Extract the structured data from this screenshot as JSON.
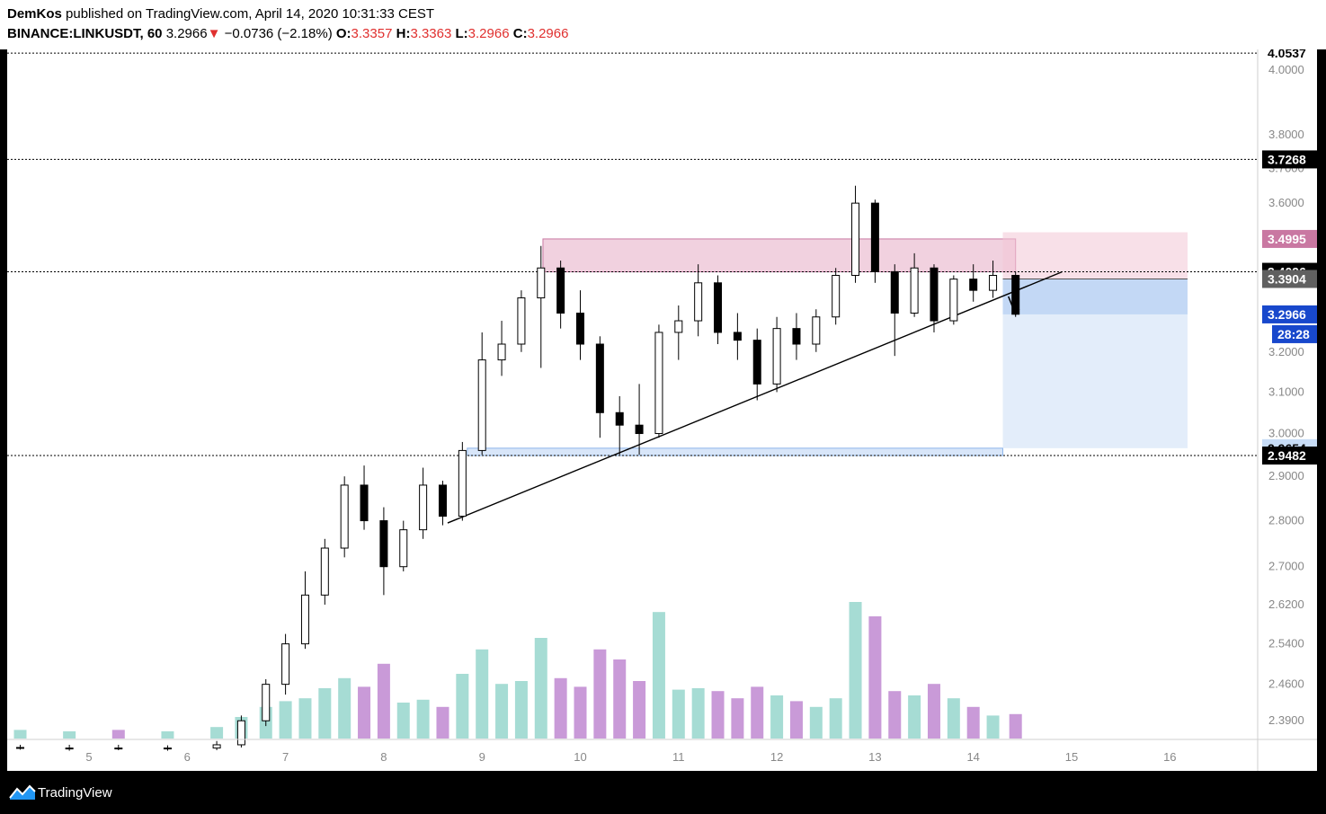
{
  "header": {
    "author": "DemKos",
    "published": " published on TradingView.com, April 14, 2020 10:31:33 CEST",
    "symbol": "BINANCE:LINKUSDT, 60",
    "last": "3.2966",
    "change": "−0.0736 (−2.18%)",
    "open_label": "O:",
    "open": "3.3357",
    "high_label": "H:",
    "high": "3.3363",
    "low_label": "L:",
    "low": "3.2966",
    "close_label": "C:",
    "close": "3.2966",
    "down_arrow": "▼"
  },
  "footer": {
    "brand": "TradingView",
    "logo_icon": "tradingview-logo-icon"
  },
  "colors": {
    "up": "#ffffff",
    "down": "#000000",
    "vol_up": "#a6dcd4",
    "vol_down": "#c99ad8",
    "red_zone": "#e8b3c9",
    "blue_zone": "#c7dcf6",
    "countdown": "#1848cc",
    "current": "#1848cc",
    "gray_tag": "#606060",
    "pink_tag": "#c978a2"
  },
  "chart_data": {
    "type": "candlestick",
    "x_ticks": [
      "5",
      "6",
      "7",
      "8",
      "9",
      "10",
      "11",
      "12",
      "13",
      "14",
      "15",
      "16"
    ],
    "y_ticks": [
      "2.3900",
      "2.4600",
      "2.5400",
      "2.6200",
      "2.7000",
      "2.8000",
      "2.9000",
      "3.0000",
      "3.1000",
      "3.2000",
      "3.3000",
      "3.4000",
      "3.5000",
      "3.6000",
      "3.7000",
      "3.8000",
      "4.0000"
    ],
    "y_range": [
      2.36,
      4.06
    ],
    "scale": "log",
    "axis_tags": [
      {
        "value": "4.0537",
        "style": "line"
      },
      {
        "value": "3.7268",
        "style": "dark"
      },
      {
        "value": "3.4995",
        "style": "pink"
      },
      {
        "value": "3.4096",
        "style": "dark"
      },
      {
        "value": "3.3904",
        "style": "gray"
      },
      {
        "value": "3.2966",
        "style": "blue"
      },
      {
        "value": "28:28",
        "style": "blue"
      },
      {
        "value": "2.9654",
        "style": "light"
      },
      {
        "value": "2.9482",
        "style": "dark"
      }
    ],
    "horizontal_levels": [
      4.0537,
      3.7268,
      3.4096,
      2.9482
    ],
    "resistance_zone": {
      "top": 3.4995,
      "bottom": 3.4096
    },
    "support_zone": {
      "top": 2.9654,
      "bottom": 2.9482
    },
    "trendline": [
      {
        "x": 8.65,
        "y": 2.795
      },
      {
        "x": 14.9,
        "y": 3.409
      }
    ],
    "position": {
      "x_start": 14.3,
      "x_end": 16.18,
      "entry": 3.3904,
      "stop": 3.518,
      "target": 2.9654,
      "current": 3.2966
    },
    "candles_daily_ohlc": [
      {
        "day": 4.3,
        "o": 2.34,
        "h": 2.345,
        "l": 2.336,
        "c": 2.34
      },
      {
        "day": 4.8,
        "o": 2.338,
        "h": 2.345,
        "l": 2.334,
        "c": 2.339
      },
      {
        "day": 5.3,
        "o": 2.339,
        "h": 2.345,
        "l": 2.335,
        "c": 2.338
      },
      {
        "day": 5.8,
        "o": 2.338,
        "h": 2.344,
        "l": 2.334,
        "c": 2.339
      },
      {
        "day": 6.3,
        "o": 2.339,
        "h": 2.352,
        "l": 2.335,
        "c": 2.345
      },
      {
        "day": 6.55,
        "o": 2.345,
        "h": 2.4,
        "l": 2.34,
        "c": 2.39
      },
      {
        "day": 6.8,
        "o": 2.39,
        "h": 2.47,
        "l": 2.38,
        "c": 2.46
      },
      {
        "day": 7.0,
        "o": 2.46,
        "h": 2.56,
        "l": 2.44,
        "c": 2.54
      },
      {
        "day": 7.2,
        "o": 2.54,
        "h": 2.69,
        "l": 2.53,
        "c": 2.64
      },
      {
        "day": 7.4,
        "o": 2.64,
        "h": 2.76,
        "l": 2.62,
        "c": 2.74
      },
      {
        "day": 7.6,
        "o": 2.74,
        "h": 2.9,
        "l": 2.72,
        "c": 2.88
      },
      {
        "day": 7.8,
        "o": 2.88,
        "h": 2.925,
        "l": 2.78,
        "c": 2.8
      },
      {
        "day": 8.0,
        "o": 2.8,
        "h": 2.83,
        "l": 2.64,
        "c": 2.7
      },
      {
        "day": 8.2,
        "o": 2.7,
        "h": 2.8,
        "l": 2.69,
        "c": 2.78
      },
      {
        "day": 8.4,
        "o": 2.78,
        "h": 2.92,
        "l": 2.76,
        "c": 2.88
      },
      {
        "day": 8.6,
        "o": 2.88,
        "h": 2.89,
        "l": 2.79,
        "c": 2.81
      },
      {
        "day": 8.8,
        "o": 2.81,
        "h": 2.98,
        "l": 2.8,
        "c": 2.96
      },
      {
        "day": 9.0,
        "o": 2.96,
        "h": 3.25,
        "l": 2.95,
        "c": 3.18
      },
      {
        "day": 9.2,
        "o": 3.18,
        "h": 3.28,
        "l": 3.14,
        "c": 3.22
      },
      {
        "day": 9.4,
        "o": 3.22,
        "h": 3.36,
        "l": 3.2,
        "c": 3.34
      },
      {
        "day": 9.6,
        "o": 3.34,
        "h": 3.48,
        "l": 3.16,
        "c": 3.42
      },
      {
        "day": 9.8,
        "o": 3.42,
        "h": 3.44,
        "l": 3.26,
        "c": 3.3
      },
      {
        "day": 10.0,
        "o": 3.3,
        "h": 3.36,
        "l": 3.18,
        "c": 3.22
      },
      {
        "day": 10.2,
        "o": 3.22,
        "h": 3.24,
        "l": 2.99,
        "c": 3.05
      },
      {
        "day": 10.4,
        "o": 3.05,
        "h": 3.09,
        "l": 2.95,
        "c": 3.02
      },
      {
        "day": 10.6,
        "o": 3.02,
        "h": 3.12,
        "l": 2.95,
        "c": 3.0
      },
      {
        "day": 10.8,
        "o": 3.0,
        "h": 3.27,
        "l": 2.99,
        "c": 3.25
      },
      {
        "day": 11.0,
        "o": 3.25,
        "h": 3.32,
        "l": 3.18,
        "c": 3.28
      },
      {
        "day": 11.2,
        "o": 3.28,
        "h": 3.43,
        "l": 3.24,
        "c": 3.38
      },
      {
        "day": 11.4,
        "o": 3.38,
        "h": 3.4,
        "l": 3.22,
        "c": 3.25
      },
      {
        "day": 11.6,
        "o": 3.25,
        "h": 3.3,
        "l": 3.18,
        "c": 3.23
      },
      {
        "day": 11.8,
        "o": 3.23,
        "h": 3.26,
        "l": 3.08,
        "c": 3.12
      },
      {
        "day": 12.0,
        "o": 3.12,
        "h": 3.29,
        "l": 3.1,
        "c": 3.26
      },
      {
        "day": 12.2,
        "o": 3.26,
        "h": 3.3,
        "l": 3.18,
        "c": 3.22
      },
      {
        "day": 12.4,
        "o": 3.22,
        "h": 3.31,
        "l": 3.2,
        "c": 3.29
      },
      {
        "day": 12.6,
        "o": 3.29,
        "h": 3.42,
        "l": 3.27,
        "c": 3.4
      },
      {
        "day": 12.8,
        "o": 3.4,
        "h": 3.65,
        "l": 3.38,
        "c": 3.6
      },
      {
        "day": 13.0,
        "o": 3.6,
        "h": 3.61,
        "l": 3.38,
        "c": 3.41
      },
      {
        "day": 13.2,
        "o": 3.41,
        "h": 3.43,
        "l": 3.19,
        "c": 3.3
      },
      {
        "day": 13.4,
        "o": 3.3,
        "h": 3.46,
        "l": 3.29,
        "c": 3.42
      },
      {
        "day": 13.6,
        "o": 3.42,
        "h": 3.43,
        "l": 3.25,
        "c": 3.28
      },
      {
        "day": 13.8,
        "o": 3.28,
        "h": 3.4,
        "l": 3.27,
        "c": 3.39
      },
      {
        "day": 14.0,
        "o": 3.39,
        "h": 3.43,
        "l": 3.33,
        "c": 3.36
      },
      {
        "day": 14.2,
        "o": 3.36,
        "h": 3.44,
        "l": 3.34,
        "c": 3.4
      },
      {
        "day": 14.43,
        "o": 3.4,
        "h": 3.41,
        "l": 3.29,
        "c": 3.297
      }
    ],
    "volume_relative": [
      {
        "day": 4.3,
        "v": 0.06
      },
      {
        "day": 4.8,
        "v": 0.05
      },
      {
        "day": 5.3,
        "v": 0.06
      },
      {
        "day": 5.8,
        "v": 0.05
      },
      {
        "day": 6.3,
        "v": 0.08
      },
      {
        "day": 6.55,
        "v": 0.15
      },
      {
        "day": 6.8,
        "v": 0.22
      },
      {
        "day": 7.0,
        "v": 0.26
      },
      {
        "day": 7.2,
        "v": 0.28
      },
      {
        "day": 7.4,
        "v": 0.35
      },
      {
        "day": 7.6,
        "v": 0.42
      },
      {
        "day": 7.8,
        "v": 0.36
      },
      {
        "day": 8.0,
        "v": 0.52
      },
      {
        "day": 8.2,
        "v": 0.25
      },
      {
        "day": 8.4,
        "v": 0.27
      },
      {
        "day": 8.6,
        "v": 0.22
      },
      {
        "day": 8.8,
        "v": 0.45
      },
      {
        "day": 9.0,
        "v": 0.62
      },
      {
        "day": 9.2,
        "v": 0.38
      },
      {
        "day": 9.4,
        "v": 0.4
      },
      {
        "day": 9.6,
        "v": 0.7
      },
      {
        "day": 9.8,
        "v": 0.42
      },
      {
        "day": 10.0,
        "v": 0.36
      },
      {
        "day": 10.2,
        "v": 0.62
      },
      {
        "day": 10.4,
        "v": 0.55
      },
      {
        "day": 10.6,
        "v": 0.4
      },
      {
        "day": 10.8,
        "v": 0.88
      },
      {
        "day": 11.0,
        "v": 0.34
      },
      {
        "day": 11.2,
        "v": 0.35
      },
      {
        "day": 11.4,
        "v": 0.33
      },
      {
        "day": 11.6,
        "v": 0.28
      },
      {
        "day": 11.8,
        "v": 0.36
      },
      {
        "day": 12.0,
        "v": 0.3
      },
      {
        "day": 12.2,
        "v": 0.26
      },
      {
        "day": 12.4,
        "v": 0.22
      },
      {
        "day": 12.6,
        "v": 0.28
      },
      {
        "day": 12.8,
        "v": 0.95
      },
      {
        "day": 13.0,
        "v": 0.85
      },
      {
        "day": 13.2,
        "v": 0.33
      },
      {
        "day": 13.4,
        "v": 0.3
      },
      {
        "day": 13.6,
        "v": 0.38
      },
      {
        "day": 13.8,
        "v": 0.28
      },
      {
        "day": 14.0,
        "v": 0.22
      },
      {
        "day": 14.2,
        "v": 0.16
      },
      {
        "day": 14.43,
        "v": 0.17
      }
    ]
  }
}
